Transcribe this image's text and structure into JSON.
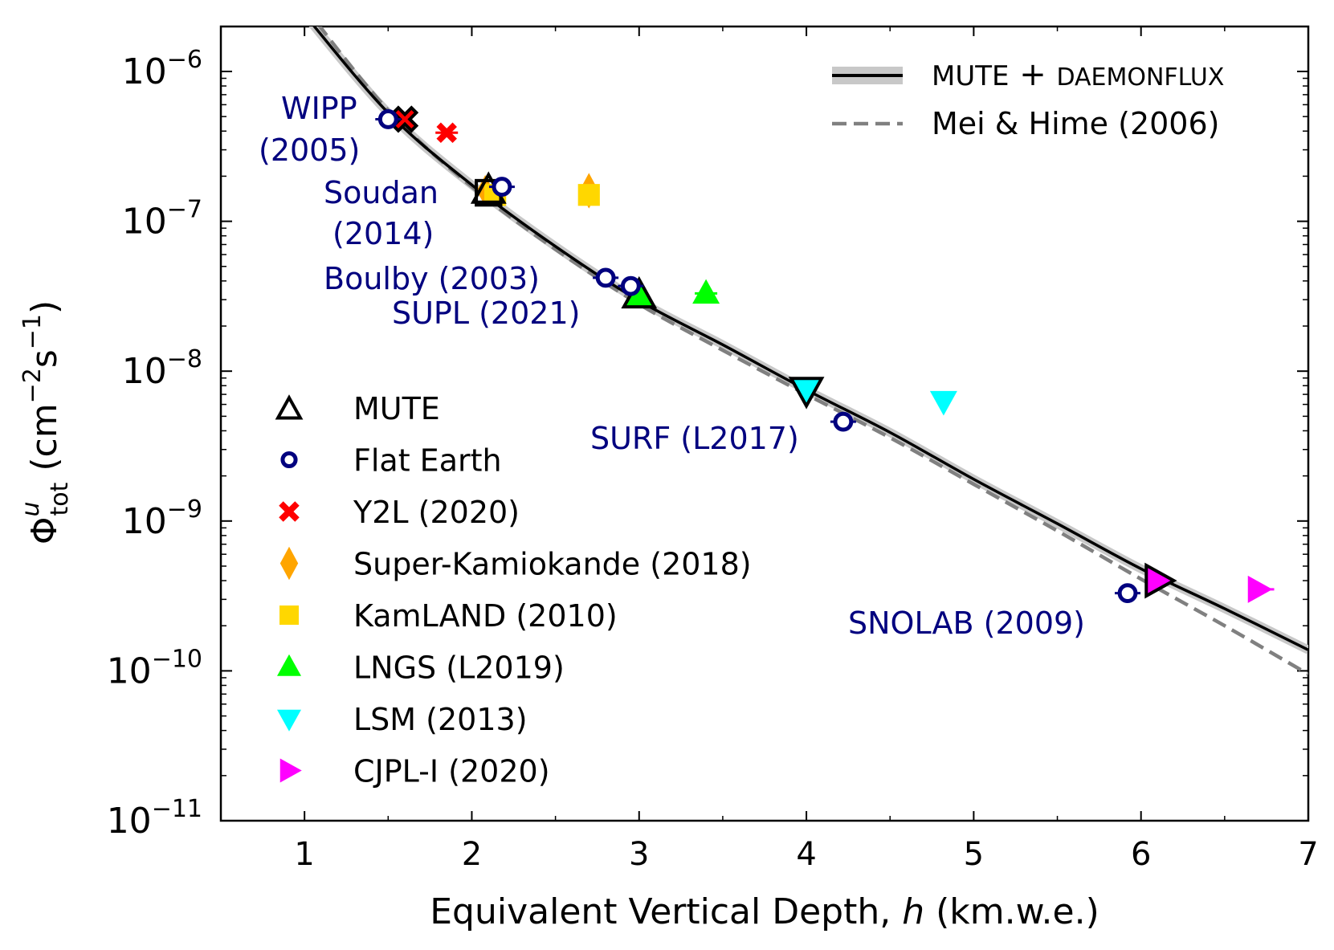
{
  "chart_data": {
    "type": "scatter",
    "xlabel_main": "Equivalent Vertical Depth, ",
    "xlabel_italic": "h",
    "xlabel_unit": " (km.w.e.)",
    "ylabel": {
      "phi": "Φ",
      "sup": "u",
      "sub": "tot",
      "unit_open": " (cm",
      "exp1": "−2",
      "s": "s",
      "exp2": "−1",
      "unit_close": ")"
    },
    "xlim": [
      0.5,
      7
    ],
    "ylim_exp": [
      -11,
      -5.7
    ],
    "yscale": "log",
    "xticks": [
      {
        "v": 1,
        "label": "1"
      },
      {
        "v": 2,
        "label": "2"
      },
      {
        "v": 3,
        "label": "3"
      },
      {
        "v": 4,
        "label": "4"
      },
      {
        "v": 5,
        "label": "5"
      },
      {
        "v": 6,
        "label": "6"
      },
      {
        "v": 7,
        "label": "7"
      }
    ],
    "yticks": [
      {
        "e": -6,
        "base": "10",
        "exp": "−6"
      },
      {
        "e": -7,
        "base": "10",
        "exp": "−7"
      },
      {
        "e": -8,
        "base": "10",
        "exp": "−8"
      },
      {
        "e": -9,
        "base": "10",
        "exp": "−9"
      },
      {
        "e": -10,
        "base": "10",
        "exp": "−10"
      },
      {
        "e": -11,
        "base": "10",
        "exp": "−11"
      }
    ],
    "curves": [
      {
        "name": "MUTE + DAEMONFLUX",
        "style": "solid",
        "color": "#000000",
        "x": [
          1.0,
          1.5,
          2.0,
          2.5,
          3.0,
          3.5,
          4.0,
          4.5,
          5.0,
          5.5,
          6.0,
          6.5,
          7.0
        ],
        "y": [
          2.4e-06,
          5.3e-07,
          1.75e-07,
          6.8e-08,
          2.95e-08,
          1.5e-08,
          7.5e-09,
          3.9e-09,
          1.9e-09,
          9.6e-10,
          4.8e-10,
          2.6e-10,
          1.38e-10
        ]
      },
      {
        "name": "Mei & Hime (2006)",
        "style": "dashed",
        "color": "#808080",
        "x": [
          1.0,
          1.5,
          2.0,
          2.5,
          3.0,
          3.5,
          4.0,
          4.5,
          5.0,
          5.5,
          6.0,
          6.5,
          7.0
        ],
        "y": [
          2.7e-06,
          5.5e-07,
          1.7e-07,
          6.5e-08,
          2.8e-08,
          1.38e-08,
          7e-09,
          3.6e-09,
          1.76e-09,
          8.6e-10,
          4.1e-10,
          2e-10,
          9.5e-11
        ]
      }
    ],
    "series": [
      {
        "name": "MUTE",
        "marker": "triangle-up-open",
        "color": "#000000",
        "points": [
          {
            "x": 1.6,
            "y": 4.8e-07,
            "m": "x-open"
          },
          {
            "x": 2.1,
            "y": 1.6e-07,
            "m": "triangle-up-open"
          },
          {
            "x": 2.1,
            "y": 1.55e-07,
            "m": "square-open"
          },
          {
            "x": 3.0,
            "y": 3.2e-08,
            "m": "triangle-up-open"
          },
          {
            "x": 4.0,
            "y": 7.5e-09,
            "m": "triangle-down-open"
          },
          {
            "x": 6.1,
            "y": 4e-10,
            "m": "triangle-right-open"
          }
        ]
      },
      {
        "name": "Flat Earth",
        "marker": "circle-open",
        "color": "#00007f",
        "points": [
          {
            "x": 1.5,
            "y": 4.8e-07
          },
          {
            "x": 2.18,
            "y": 1.7e-07
          },
          {
            "x": 2.8,
            "y": 4.2e-08
          },
          {
            "x": 2.95,
            "y": 3.7e-08
          },
          {
            "x": 4.22,
            "y": 4.6e-09
          },
          {
            "x": 5.92,
            "y": 3.3e-10
          }
        ]
      },
      {
        "name": "Y2L (2020)",
        "marker": "x-filled",
        "color": "#ff0000",
        "points": [
          {
            "x": 1.85,
            "y": 3.9e-07
          }
        ]
      },
      {
        "name": "Super-Kamiokande (2018)",
        "marker": "diamond",
        "color": "#ffa500",
        "points": [
          {
            "x": 2.7,
            "y": 1.6e-07
          }
        ]
      },
      {
        "name": "KamLAND (2010)",
        "marker": "square",
        "color": "#ffd700",
        "points": [
          {
            "x": 2.7,
            "y": 1.5e-07
          }
        ]
      },
      {
        "name": "LNGS (L2019)",
        "marker": "triangle-up",
        "color": "#00ff00",
        "points": [
          {
            "x": 3.4,
            "y": 3.3e-08
          }
        ]
      },
      {
        "name": "LSM (2013)",
        "marker": "triangle-down",
        "color": "#00ffff",
        "points": [
          {
            "x": 4.82,
            "y": 6.3e-09
          }
        ]
      },
      {
        "name": "CJPL-I (2020)",
        "marker": "triangle-right",
        "color": "#ff00ff",
        "points": [
          {
            "x": 6.7,
            "y": 3.5e-10
          }
        ]
      }
    ],
    "colored_fills": {
      "Super-Kamiokande (2018)": {
        "x": 2.08,
        "y": 1.6e-07
      },
      "KamLAND (2010)": {
        "x": 2.14,
        "y": 1.5e-07
      },
      "LNGS (L2019)": {
        "x": 3.0,
        "y": 3.2e-08
      },
      "LSM (2013)": {
        "x": 4.0,
        "y": 7.5e-09
      },
      "CJPL-I (2020)": {
        "x": 6.1,
        "y": 4e-10
      },
      "Y2L (2020)": {
        "x": 1.6,
        "y": 4.8e-07
      }
    },
    "site_labels": [
      {
        "id": "wipp",
        "lines": [
          "WIPP",
          "(2005)"
        ]
      },
      {
        "id": "soudan",
        "lines": [
          "Soudan",
          "(2014)"
        ]
      },
      {
        "id": "boulby",
        "lines": [
          "Boulby (2003)"
        ]
      },
      {
        "id": "supl",
        "lines": [
          "SUPL (2021)"
        ]
      },
      {
        "id": "surf",
        "lines": [
          "SURF (L2017)"
        ]
      },
      {
        "id": "snolab",
        "lines": [
          "SNOLAB (2009)"
        ]
      }
    ],
    "legend_lines": {
      "placement": "top-right",
      "items": [
        {
          "label_main": "MUTE",
          "plus": " + ",
          "label_small": "DAEMONFLUX",
          "style": "solid"
        },
        {
          "label_main": "Mei & Hime (2006)",
          "style": "dashed"
        }
      ]
    },
    "legend_markers": {
      "placement": "lower-left",
      "items": [
        "MUTE",
        "Flat Earth",
        "Y2L (2020)",
        "Super-Kamiokande (2018)",
        "KamLAND (2010)",
        "LNGS (L2019)",
        "LSM (2013)",
        "CJPL-I (2020)"
      ]
    },
    "grid": false
  }
}
